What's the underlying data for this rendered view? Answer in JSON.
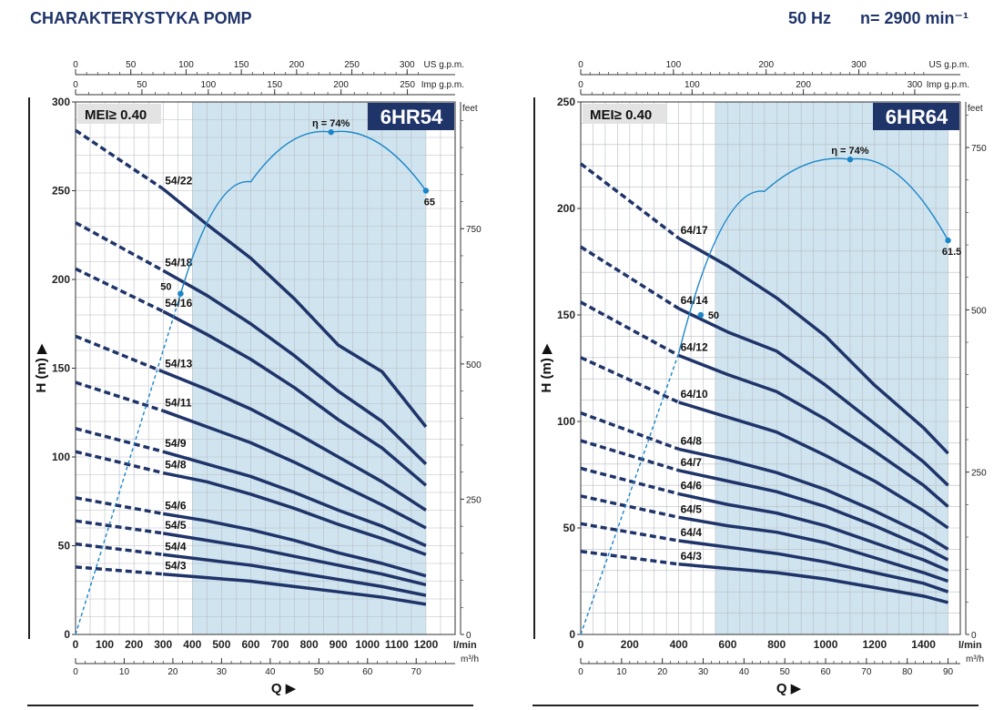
{
  "header": {
    "title": "CHARAKTERYSTYKA POMP",
    "frequency": "50 Hz",
    "speed": "n= 2900 min⁻¹"
  },
  "chart_data": [
    {
      "type": "line",
      "title": "6HR54",
      "mei_label": "MEI≥ 0.40",
      "xlabel": "Q ▶",
      "ylabel": "H (m) ▶",
      "x_unit": "l/min",
      "y_unit_right": "feet",
      "xlim": [
        0,
        1300
      ],
      "ylim": [
        0,
        300
      ],
      "shaded_range": [
        400,
        1200
      ],
      "x_ticks": [
        0,
        100,
        200,
        300,
        400,
        500,
        600,
        700,
        800,
        900,
        1000,
        1100,
        1200
      ],
      "y_ticks": [
        0,
        50,
        100,
        150,
        200,
        250,
        300
      ],
      "feet_ticks": [
        0,
        250,
        500,
        750
      ],
      "top_axes": [
        {
          "unit": "US g.p.m.",
          "factor": 3.78541,
          "ticks": [
            0,
            50,
            100,
            150,
            200,
            250,
            300
          ]
        },
        {
          "unit": "Imp g.p.m.",
          "factor": 4.54609,
          "ticks": [
            0,
            50,
            100,
            150,
            200,
            250
          ]
        }
      ],
      "bottom_axis": {
        "unit": "m³/h",
        "factor": 16.6667,
        "ticks": [
          0,
          10,
          20,
          30,
          40,
          50,
          60,
          70
        ]
      },
      "series": [
        {
          "name": "54/22",
          "label": "54/22",
          "x": [
            0,
            300,
            450,
            600,
            750,
            900,
            1050,
            1200
          ],
          "values": [
            284,
            251,
            231,
            212,
            189,
            163,
            148,
            117
          ]
        },
        {
          "name": "54/18",
          "label": "54/18",
          "x": [
            0,
            300,
            450,
            600,
            750,
            900,
            1050,
            1200
          ],
          "values": [
            232,
            205,
            191,
            175,
            157,
            137,
            120,
            96
          ]
        },
        {
          "name": "54/16",
          "label": "54/16",
          "x": [
            0,
            300,
            450,
            600,
            750,
            900,
            1050,
            1200
          ],
          "values": [
            206,
            182,
            169,
            155,
            139,
            121,
            105,
            84
          ]
        },
        {
          "name": "54/13",
          "label": "54/13",
          "x": [
            0,
            300,
            450,
            600,
            750,
            900,
            1050,
            1200
          ],
          "values": [
            168,
            148,
            138,
            127,
            114,
            100,
            86,
            70
          ]
        },
        {
          "name": "54/11",
          "label": "54/11",
          "x": [
            0,
            300,
            450,
            600,
            750,
            900,
            1050,
            1200
          ],
          "values": [
            142,
            126,
            117,
            108,
            97,
            85,
            73,
            60
          ]
        },
        {
          "name": "54/9",
          "label": "54/9",
          "x": [
            0,
            300,
            450,
            600,
            750,
            900,
            1050,
            1200
          ],
          "values": [
            116,
            103,
            96,
            89,
            80,
            70,
            61,
            50
          ]
        },
        {
          "name": "54/8",
          "label": "54/8",
          "x": [
            0,
            300,
            450,
            600,
            750,
            900,
            1050,
            1200
          ],
          "values": [
            103,
            91,
            86,
            79,
            71,
            62,
            54,
            45
          ]
        },
        {
          "name": "54/6",
          "label": "54/6",
          "x": [
            0,
            300,
            450,
            600,
            750,
            900,
            1050,
            1200
          ],
          "values": [
            77,
            68,
            64,
            59,
            53,
            46,
            40,
            33
          ]
        },
        {
          "name": "54/5",
          "label": "54/5",
          "x": [
            0,
            300,
            450,
            600,
            750,
            900,
            1050,
            1200
          ],
          "values": [
            64,
            57,
            53,
            49,
            44,
            39,
            34,
            28
          ]
        },
        {
          "name": "54/4",
          "label": "54/4",
          "x": [
            0,
            300,
            450,
            600,
            750,
            900,
            1050,
            1200
          ],
          "values": [
            51,
            45,
            42,
            39,
            35,
            31,
            27,
            22
          ]
        },
        {
          "name": "54/3",
          "label": "54/3",
          "x": [
            0,
            300,
            450,
            600,
            750,
            900,
            1050,
            1200
          ],
          "values": [
            38,
            34,
            32,
            30,
            27,
            24,
            21,
            17
          ]
        }
      ],
      "efficiency_curve": {
        "x": [
          0,
          360,
          600,
          875,
          1200
        ],
        "values": [
          0,
          192,
          255,
          283,
          250
        ],
        "annotations": [
          {
            "label": "50",
            "x": 360,
            "y": 192
          },
          {
            "label": "η = 74%",
            "x": 875,
            "y": 283
          },
          {
            "label": "65",
            "x": 1200,
            "y": 250
          }
        ]
      }
    },
    {
      "type": "line",
      "title": "6HR64",
      "mei_label": "MEI≥ 0.40",
      "xlabel": "Q ▶",
      "ylabel": "H (m) ▶",
      "x_unit": "l/min",
      "y_unit_right": "feet",
      "xlim": [
        0,
        1550
      ],
      "ylim": [
        0,
        250
      ],
      "shaded_range": [
        550,
        1500
      ],
      "x_ticks": [
        0,
        200,
        400,
        600,
        800,
        1000,
        1200,
        1400
      ],
      "y_ticks": [
        0,
        50,
        100,
        150,
        200,
        250
      ],
      "feet_ticks": [
        0,
        250,
        500,
        750
      ],
      "top_axes": [
        {
          "unit": "US g.p.m.",
          "factor": 3.78541,
          "ticks": [
            0,
            100,
            200,
            300
          ]
        },
        {
          "unit": "Imp g.p.m.",
          "factor": 4.54609,
          "ticks": [
            0,
            100,
            200,
            300
          ]
        }
      ],
      "bottom_axis": {
        "unit": "m³/h",
        "factor": 16.6667,
        "ticks": [
          0,
          10,
          20,
          30,
          40,
          50,
          60,
          70,
          80,
          90
        ]
      },
      "series": [
        {
          "name": "64/17",
          "label": "64/17",
          "x": [
            0,
            400,
            600,
            800,
            1000,
            1200,
            1400,
            1500
          ],
          "values": [
            221,
            186,
            173,
            158,
            140,
            117,
            97,
            85
          ]
        },
        {
          "name": "64/14",
          "label": "64/14",
          "x": [
            0,
            400,
            600,
            800,
            1000,
            1200,
            1400,
            1500
          ],
          "values": [
            182,
            153,
            142,
            133,
            117,
            99,
            81,
            70
          ]
        },
        {
          "name": "64/12",
          "label": "64/12",
          "x": [
            0,
            400,
            600,
            800,
            1000,
            1200,
            1400,
            1500
          ],
          "values": [
            156,
            131,
            122,
            114,
            101,
            86,
            70,
            60
          ]
        },
        {
          "name": "64/10",
          "label": "64/10",
          "x": [
            0,
            400,
            600,
            800,
            1000,
            1200,
            1400,
            1500
          ],
          "values": [
            130,
            109,
            102,
            95,
            84,
            72,
            58,
            50
          ]
        },
        {
          "name": "64/8",
          "label": "64/8",
          "x": [
            0,
            400,
            600,
            800,
            1000,
            1200,
            1400,
            1500
          ],
          "values": [
            104,
            87,
            82,
            76,
            68,
            58,
            47,
            40
          ]
        },
        {
          "name": "64/7",
          "label": "64/7",
          "x": [
            0,
            400,
            600,
            800,
            1000,
            1200,
            1400,
            1500
          ],
          "values": [
            91,
            77,
            72,
            67,
            60,
            51,
            41,
            35
          ]
        },
        {
          "name": "64/6",
          "label": "64/6",
          "x": [
            0,
            400,
            600,
            800,
            1000,
            1200,
            1400,
            1500
          ],
          "values": [
            78,
            66,
            61,
            57,
            51,
            43,
            35,
            30
          ]
        },
        {
          "name": "64/5",
          "label": "64/5",
          "x": [
            0,
            400,
            600,
            800,
            1000,
            1200,
            1400,
            1500
          ],
          "values": [
            65,
            55,
            51,
            48,
            43,
            36,
            29,
            25
          ]
        },
        {
          "name": "64/4",
          "label": "64/4",
          "x": [
            0,
            400,
            600,
            800,
            1000,
            1200,
            1400,
            1500
          ],
          "values": [
            52,
            44,
            41,
            38,
            34,
            29,
            24,
            20
          ]
        },
        {
          "name": "64/3",
          "label": "64/3",
          "x": [
            0,
            400,
            600,
            800,
            1000,
            1200,
            1400,
            1500
          ],
          "values": [
            39,
            33,
            31,
            29,
            26,
            22,
            18,
            15
          ]
        }
      ],
      "efficiency_curve": {
        "x": [
          0,
          400,
          750,
          1100,
          1500
        ],
        "values": [
          0,
          132,
          208,
          223,
          185
        ],
        "annotations": [
          {
            "label": "50",
            "x": 490,
            "y": 150
          },
          {
            "label": "η = 74%",
            "x": 1100,
            "y": 223
          },
          {
            "label": "61.5",
            "x": 1500,
            "y": 185
          }
        ]
      }
    }
  ]
}
